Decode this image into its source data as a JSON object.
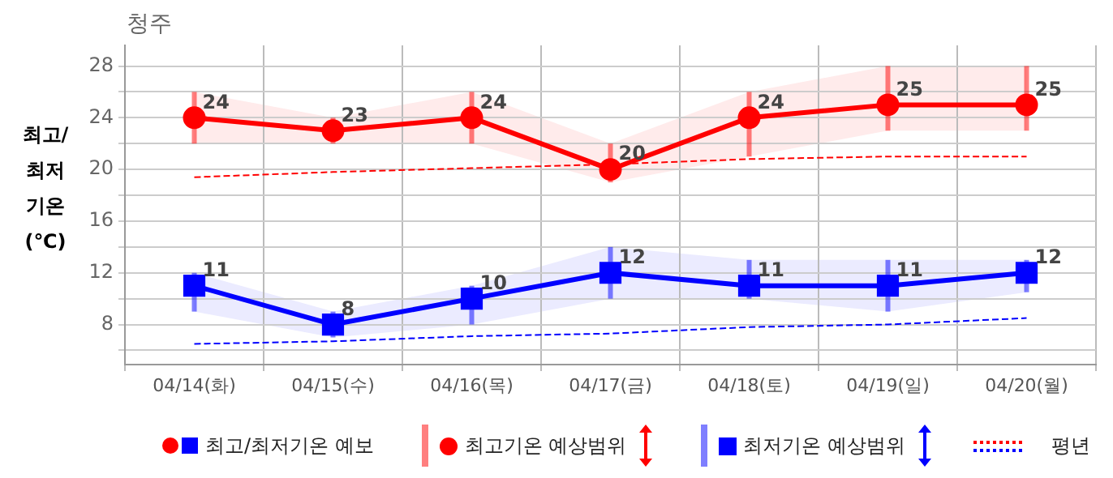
{
  "chart_data": {
    "type": "line",
    "title": "청주",
    "ylabel": "최고/최저 기온 (℃)",
    "categories": [
      "04/14(화)",
      "04/15(수)",
      "04/16(목)",
      "04/17(금)",
      "04/18(토)",
      "04/19(일)",
      "04/20(월)"
    ],
    "series": [
      {
        "name": "최고기온 예상범위",
        "color": "#ff0000",
        "marker": "circle",
        "values": [
          24,
          23,
          24,
          20,
          24,
          25,
          25
        ],
        "value_labels": [
          "24",
          "23",
          "24",
          "20",
          "24",
          "25",
          "25"
        ],
        "errors": [
          [
            22,
            26
          ],
          [
            22,
            24
          ],
          [
            22,
            26
          ],
          [
            19,
            22
          ],
          [
            21,
            26
          ],
          [
            23,
            28
          ],
          [
            23,
            28
          ]
        ],
        "lower": [
          22,
          22,
          22,
          19,
          21,
          23,
          23
        ],
        "upper": [
          26,
          24,
          26,
          22,
          26,
          28,
          28
        ]
      },
      {
        "name": "최저기온 예상범위",
        "color": "#0000ff",
        "marker": "square",
        "values": [
          11,
          8,
          10,
          12,
          11,
          11,
          12
        ],
        "value_labels": [
          "11",
          "8",
          "10",
          "12",
          "11",
          "11",
          "12"
        ],
        "errors": [
          [
            9,
            12
          ],
          [
            7,
            9
          ],
          [
            8,
            11
          ],
          [
            10,
            14
          ],
          [
            10,
            13
          ],
          [
            9,
            13
          ],
          [
            10.5,
            13
          ]
        ],
        "lower": [
          9,
          7,
          8,
          10,
          10,
          9,
          10.5
        ],
        "upper": [
          12,
          9,
          11,
          14,
          13,
          13,
          13
        ]
      },
      {
        "name": "평년",
        "color": "#ff0000",
        "marker": "none",
        "line_style": "dashed",
        "values": [
          19.4,
          19.8,
          20.1,
          20.4,
          20.8,
          21,
          21
        ]
      },
      {
        "color": "#0000ff",
        "marker": "none",
        "line_style": "dashed",
        "values": [
          6.5,
          6.7,
          7.1,
          7.3,
          7.8,
          8,
          8.5
        ]
      }
    ],
    "ylim": [
      4.9,
      29.6
    ],
    "yticks": [
      {
        "value": 6,
        "label": null
      },
      8,
      {
        "value": 10,
        "label": null
      },
      12,
      {
        "value": 14,
        "label": null
      },
      16,
      {
        "value": 18,
        "label": null
      },
      20,
      {
        "value": 22,
        "label": null
      },
      24,
      {
        "value": 26,
        "label": null
      },
      28
    ],
    "grid": true,
    "legend": "bottom",
    "annotations": [
      "최고/최저기온 예보"
    ]
  }
}
